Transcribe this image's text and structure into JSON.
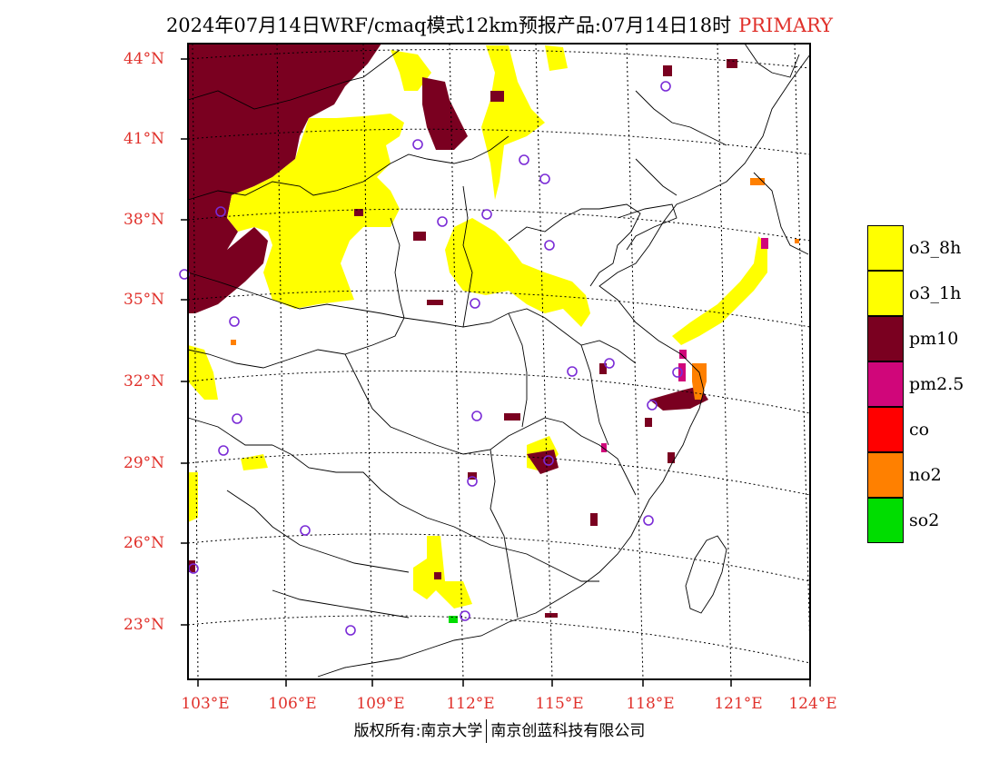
{
  "title": {
    "main": "2024年07月14日WRF/cmaq模式12km预报产品:07月14日18时",
    "tag": "PRIMARY"
  },
  "latitude_labels": [
    "44°N",
    "41°N",
    "38°N",
    "35°N",
    "32°N",
    "29°N",
    "26°N",
    "23°N"
  ],
  "longitude_labels": [
    "103°E",
    "106°E",
    "109°E",
    "112°E",
    "115°E",
    "118°E",
    "121°E",
    "124°E"
  ],
  "legend": [
    {
      "label": "o3_8h",
      "color": "#ffff00"
    },
    {
      "label": "o3_1h",
      "color": "#ffff00"
    },
    {
      "label": "pm10",
      "color": "#7a0020"
    },
    {
      "label": "pm2.5",
      "color": "#d0067a"
    },
    {
      "label": "co",
      "color": "#ff0000"
    },
    {
      "label": "no2",
      "color": "#ff8000"
    },
    {
      "label": "so2",
      "color": "#00dd00"
    }
  ],
  "footer": {
    "left": "版权所有:南京大学",
    "right": "南京创蓝科技有限公司"
  }
}
